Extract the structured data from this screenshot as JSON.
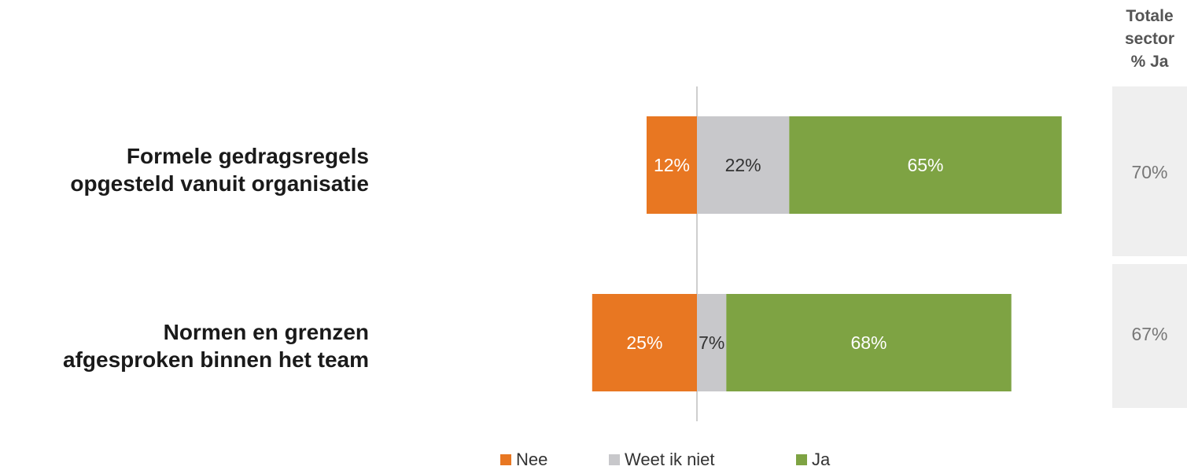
{
  "chart_data": {
    "type": "bar",
    "orientation": "horizontal",
    "stacked": true,
    "categories": [
      "Formele gedragsregels opgesteld vanuit organisatie",
      "Normen en grenzen afgesproken binnen het team"
    ],
    "category_label_lines": [
      [
        "Formele gedragsregels",
        "opgesteld vanuit organisatie"
      ],
      [
        "Normen en grenzen",
        "afgesproken binnen het team"
      ]
    ],
    "series": [
      {
        "name": "Nee",
        "color": "#E87722",
        "values": [
          12,
          25
        ],
        "labels": [
          "12%",
          "25%"
        ],
        "label_color": "#ffffff",
        "direction": "negative"
      },
      {
        "name": "Weet ik niet",
        "color": "#C8C8CB",
        "values": [
          22,
          7
        ],
        "labels": [
          "22%",
          "7%"
        ],
        "label_color": "#333333",
        "direction": "positive"
      },
      {
        "name": "Ja",
        "color": "#7EA343",
        "values": [
          65,
          68
        ],
        "labels": [
          "65%",
          "68%"
        ],
        "label_color": "#ffffff",
        "direction": "positive"
      }
    ],
    "legend": [
      "Nee",
      "Weet ik niet",
      "Ja"
    ],
    "legend_position": "bottom",
    "grid": false,
    "baseline": 0,
    "total_sector": {
      "header_lines": [
        "Totale",
        "sector",
        "% Ja"
      ],
      "values": [
        "70%",
        "67%"
      ]
    }
  }
}
